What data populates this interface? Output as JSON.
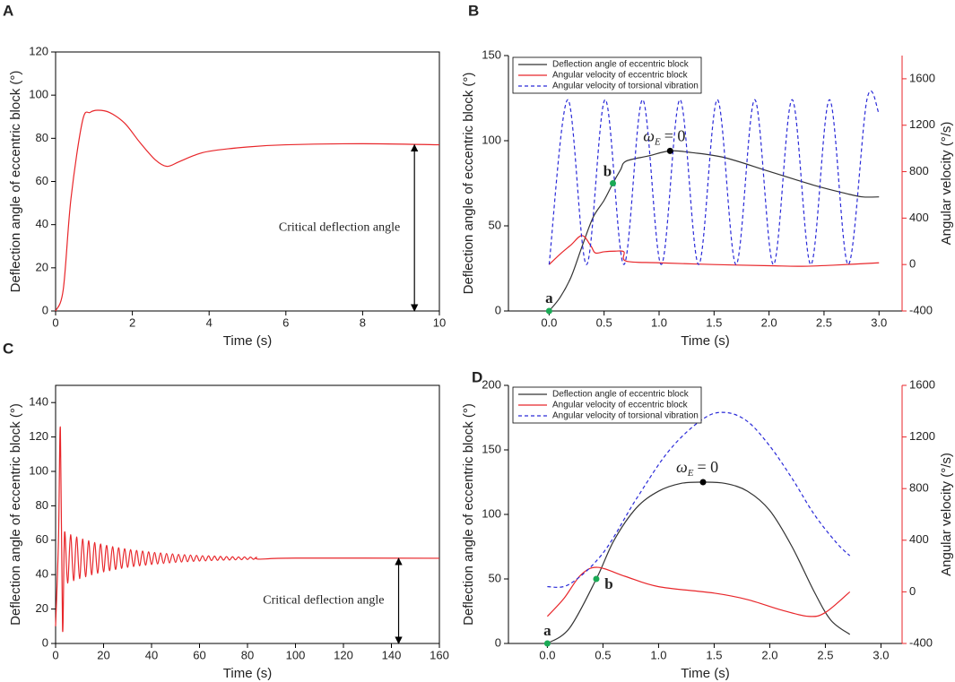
{
  "chart_data": [
    {
      "type": "line",
      "panel": "A",
      "xlabel": "Time (s)",
      "ylabel": "Deflection angle of eccentric block (°)",
      "xlim": [
        0,
        10
      ],
      "xticks": [
        0,
        2,
        4,
        6,
        8,
        10
      ],
      "ylim": [
        0,
        120
      ],
      "yticks": [
        0,
        20,
        40,
        60,
        80,
        100,
        120
      ],
      "frame": true,
      "series": [
        {
          "color": "#e8262a",
          "x": [
            0,
            0.2,
            0.4,
            0.7,
            0.9,
            1.1,
            1.4,
            1.8,
            2.2,
            2.6,
            2.9,
            3.2,
            3.6,
            4,
            5,
            6,
            8,
            10
          ],
          "values": [
            0,
            10,
            52,
            88,
            92,
            93,
            92,
            87,
            78,
            70,
            67,
            69,
            72,
            74,
            76,
            77,
            77.5,
            77
          ]
        }
      ],
      "annotation": {
        "text": "Critical deflection angle",
        "arrow_x": 9.35,
        "arrow_y": [
          0,
          77
        ]
      }
    },
    {
      "type": "line",
      "panel": "B",
      "xlabel": "Time (s)",
      "ylabel": "Deflection angle of eccentric block (°)",
      "y2label": "Angular velocity (°/s)",
      "xlim": [
        -0.37,
        3.21
      ],
      "xticks": [
        {
          "value": 0,
          "label": "0.0"
        },
        0.5,
        {
          "value": 1,
          "label": "1.0"
        },
        1.5,
        {
          "value": 2,
          "label": "2.0"
        },
        2.5,
        {
          "value": 3,
          "label": "3.0"
        }
      ],
      "ylim": [
        0,
        150
      ],
      "yticks": [
        0,
        50,
        100,
        150
      ],
      "y2lim": [
        -400,
        1800
      ],
      "y2ticks": [
        -400,
        0,
        400,
        800,
        1200,
        1600
      ],
      "y2color": "#e8262a",
      "frame": false,
      "legend": "upper left",
      "series": [
        {
          "name": "Deflection angle of eccentric block",
          "color": "#333333",
          "x": [
            0,
            0.1,
            0.2,
            0.3,
            0.4,
            0.5,
            0.58,
            0.65,
            0.7,
            0.9,
            1.1,
            1.3,
            1.6,
            2.0,
            2.4,
            2.7,
            2.85,
            3.0
          ],
          "values": [
            0,
            8,
            20,
            38,
            55,
            65,
            75,
            83,
            88,
            91,
            94,
            93,
            90,
            82,
            74,
            69,
            67,
            67
          ]
        },
        {
          "name": "Angular velocity of eccentric block",
          "color": "#e8262a",
          "axis": "y2",
          "x": [
            0,
            0.1,
            0.2,
            0.3,
            0.38,
            0.42,
            0.5,
            0.6,
            0.68,
            0.7,
            1.0,
            1.5,
            2.0,
            2.3,
            2.6,
            3.0
          ],
          "values": [
            0,
            90,
            170,
            250,
            160,
            100,
            110,
            115,
            110,
            30,
            15,
            0,
            -10,
            -15,
            -5,
            15
          ]
        },
        {
          "name": "Angular velocity of torsional vibration",
          "color": "#2a2ad8",
          "dashed": true,
          "axis": "y2",
          "x": [
            0,
            0.17,
            0.34,
            0.51,
            0.68,
            0.85,
            1.02,
            1.19,
            1.36,
            1.53,
            1.7,
            1.87,
            2.04,
            2.21,
            2.38,
            2.55,
            2.72,
            2.89,
            3.0
          ],
          "values": [
            0,
            1420,
            0,
            1420,
            0,
            1420,
            0,
            1420,
            0,
            1420,
            0,
            1420,
            0,
            1420,
            0,
            1420,
            0,
            1420,
            1300
          ]
        }
      ],
      "points": [
        {
          "label": "a",
          "x": 0,
          "y": 0
        },
        {
          "label": "b",
          "x": 0.58,
          "y": 75
        }
      ],
      "point_color": "#1aaa55",
      "omega": {
        "symbol": "ω",
        "subscript": "E",
        "rest": "= 0",
        "x": 1.1,
        "y": 94
      }
    },
    {
      "type": "line",
      "panel": "C",
      "xlabel": "Time (s)",
      "ylabel": "Deflection angle of eccentric block (°)",
      "xlim": [
        0,
        160
      ],
      "xticks": [
        0,
        20,
        40,
        60,
        80,
        100,
        120,
        140,
        160
      ],
      "ylim": [
        0,
        150
      ],
      "yticks": [
        0,
        20,
        40,
        60,
        80,
        100,
        120,
        140
      ],
      "frame": true,
      "series": [
        {
          "color": "#e8262a",
          "x": [
            0,
            1.2,
            2,
            2.9,
            3.75,
            5,
            6.25,
            7.5,
            8.75,
            10,
            11.25,
            12.5,
            13.75,
            15,
            16.25,
            17.5,
            18.75,
            20,
            21.25,
            22.5,
            23.75,
            25,
            26.25,
            27.5,
            28.75,
            30,
            31.25,
            32.5,
            33.75,
            35,
            36.25,
            37.5,
            38.75,
            40,
            41.25,
            42.5,
            43.75,
            45,
            46.25,
            47.5,
            48.75,
            50,
            51.25,
            52.5,
            53.75,
            55,
            56.25,
            57.5,
            58.75,
            60,
            61.25,
            62.5,
            63.75,
            65,
            66.25,
            67.5,
            68.75,
            70,
            71.25,
            72.5,
            73.75,
            75,
            76.25,
            77.5,
            78.75,
            80,
            81.25,
            82.5,
            83.75,
            85,
            100,
            160
          ],
          "values": [
            10,
            60,
            125,
            8,
            64.5,
            35.1,
            63.2,
            36.5,
            61.9,
            37.7,
            60.7,
            38.8,
            59.7,
            39.9,
            58.7,
            40.8,
            57.8,
            41.6,
            57.0,
            42.3,
            56.3,
            43.0,
            55.7,
            43.6,
            55.1,
            44.2,
            54.6,
            44.7,
            54.1,
            45.1,
            53.7,
            45.5,
            53.3,
            45.9,
            52.9,
            46.2,
            52.6,
            46.5,
            52.3,
            46.8,
            52.1,
            47.1,
            51.8,
            47.3,
            51.6,
            47.5,
            51.4,
            47.7,
            51.2,
            47.9,
            51.0,
            48.0,
            50.9,
            48.2,
            50.8,
            48.3,
            50.6,
            48.4,
            50.5,
            48.5,
            50.4,
            48.6,
            50.3,
            48.7,
            50.3,
            48.8,
            50.2,
            48.9,
            50.1,
            49.0,
            49.6,
            49.5
          ]
        }
      ],
      "annotation": {
        "text": "Critical deflection angle",
        "arrow_x": 143,
        "arrow_y": [
          0,
          49.5
        ]
      }
    },
    {
      "type": "line",
      "panel": "D",
      "xlabel": "Time (s)",
      "ylabel": "Deflection angle of eccentric block (°)",
      "y2label": "Angular velocity (°/s)",
      "xlim": [
        -0.35,
        3.19
      ],
      "xticks": [
        {
          "value": 0,
          "label": "0.0"
        },
        0.5,
        {
          "value": 1,
          "label": "1.0"
        },
        1.5,
        {
          "value": 2,
          "label": "2.0"
        },
        2.5,
        {
          "value": 3,
          "label": "3.0"
        }
      ],
      "ylim": [
        0,
        200
      ],
      "yticks": [
        0,
        50,
        100,
        150,
        200
      ],
      "y2lim": [
        -400,
        1600
      ],
      "y2ticks": [
        -400,
        0,
        400,
        800,
        1200,
        1600
      ],
      "y2color": "#e8262a",
      "frame": false,
      "legend": "upper left",
      "series": [
        {
          "name": "Deflection angle of eccentric block",
          "color": "#333333",
          "x": [
            0,
            0.2,
            0.44,
            0.6,
            0.8,
            1.0,
            1.2,
            1.4,
            1.6,
            1.8,
            2.0,
            2.2,
            2.4,
            2.55,
            2.72
          ],
          "values": [
            0,
            12,
            50,
            80,
            105,
            118,
            124,
            125,
            124,
            118,
            103,
            75,
            40,
            18,
            7
          ]
        },
        {
          "name": "Angular velocity of eccentric block",
          "color": "#e8262a",
          "axis": "y2",
          "x": [
            0,
            0.15,
            0.3,
            0.45,
            0.7,
            1.0,
            1.5,
            1.8,
            2.1,
            2.35,
            2.5,
            2.72
          ],
          "values": [
            -190,
            -50,
            130,
            190,
            120,
            40,
            -10,
            -60,
            -140,
            -190,
            -160,
            0
          ]
        },
        {
          "name": "Angular velocity of torsional vibration",
          "color": "#2a2ad8",
          "dashed": true,
          "axis": "y2",
          "x": [
            0,
            0.2,
            0.5,
            0.8,
            1.1,
            1.4,
            1.6,
            1.8,
            2.0,
            2.2,
            2.4,
            2.6,
            2.72
          ],
          "values": [
            40,
            60,
            300,
            720,
            1100,
            1340,
            1390,
            1320,
            1130,
            880,
            600,
            380,
            280
          ]
        }
      ],
      "points": [
        {
          "label": "a",
          "x": 0,
          "y": 0
        },
        {
          "label": "b",
          "x": 0.44,
          "y": 50
        }
      ],
      "point_color": "#1aaa55",
      "omega": {
        "symbol": "ω",
        "subscript": "E",
        "rest": "= 0",
        "x": 1.4,
        "y": 125
      }
    }
  ]
}
